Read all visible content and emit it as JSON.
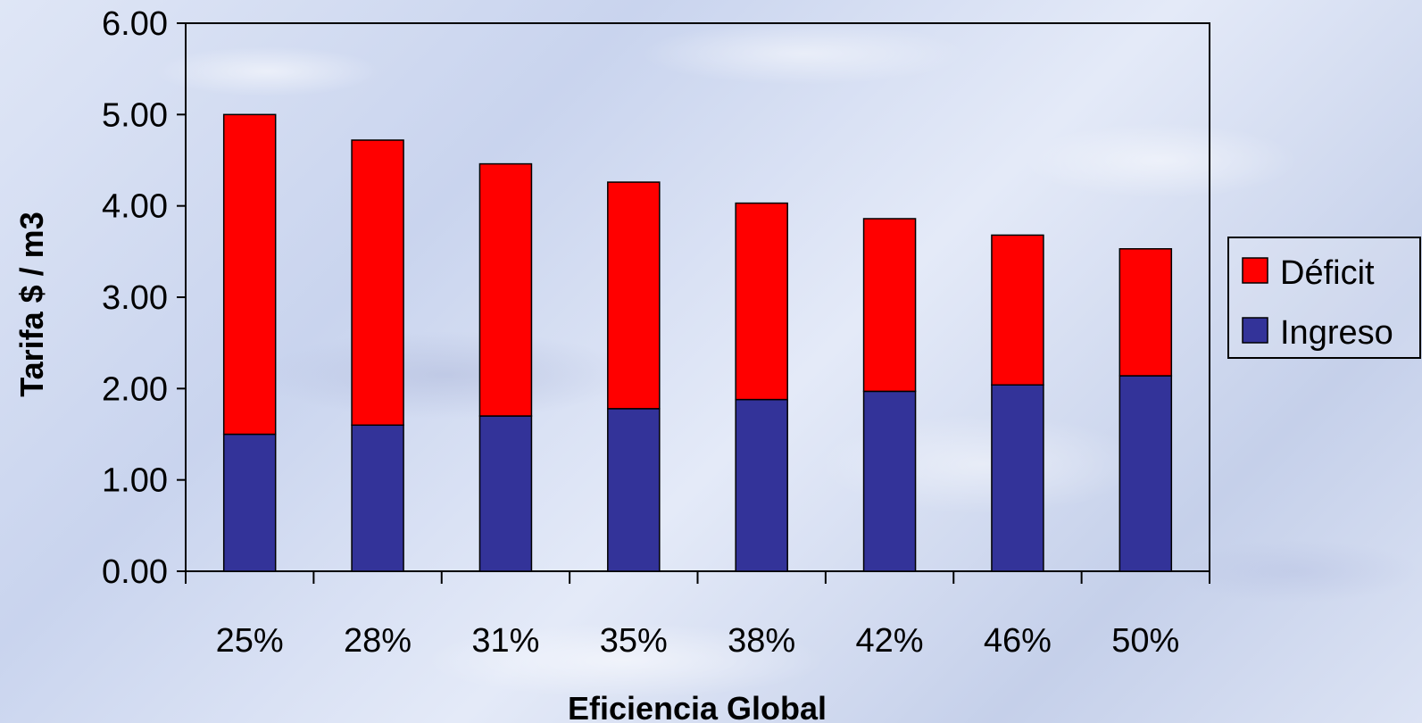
{
  "chart_data": {
    "type": "bar",
    "stacked": true,
    "categories": [
      "25%",
      "28%",
      "31%",
      "35%",
      "38%",
      "42%",
      "46%",
      "50%"
    ],
    "series": [
      {
        "name": "Ingreso",
        "color": "#333399",
        "values": [
          1.5,
          1.6,
          1.7,
          1.78,
          1.88,
          1.97,
          2.04,
          2.14
        ]
      },
      {
        "name": "Déficit",
        "color": "#ff0000",
        "values": [
          3.5,
          3.12,
          2.76,
          2.48,
          2.15,
          1.89,
          1.64,
          1.39
        ]
      }
    ],
    "xlabel": "Eficiencia Global",
    "ylabel": "Tarifa  $ / m3",
    "ylim": [
      0,
      6
    ],
    "yticks": [
      "0.00",
      "1.00",
      "2.00",
      "3.00",
      "4.00",
      "5.00",
      "6.00"
    ],
    "legend": {
      "position": "right",
      "order": [
        "Déficit",
        "Ingreso"
      ]
    },
    "grid": false
  }
}
